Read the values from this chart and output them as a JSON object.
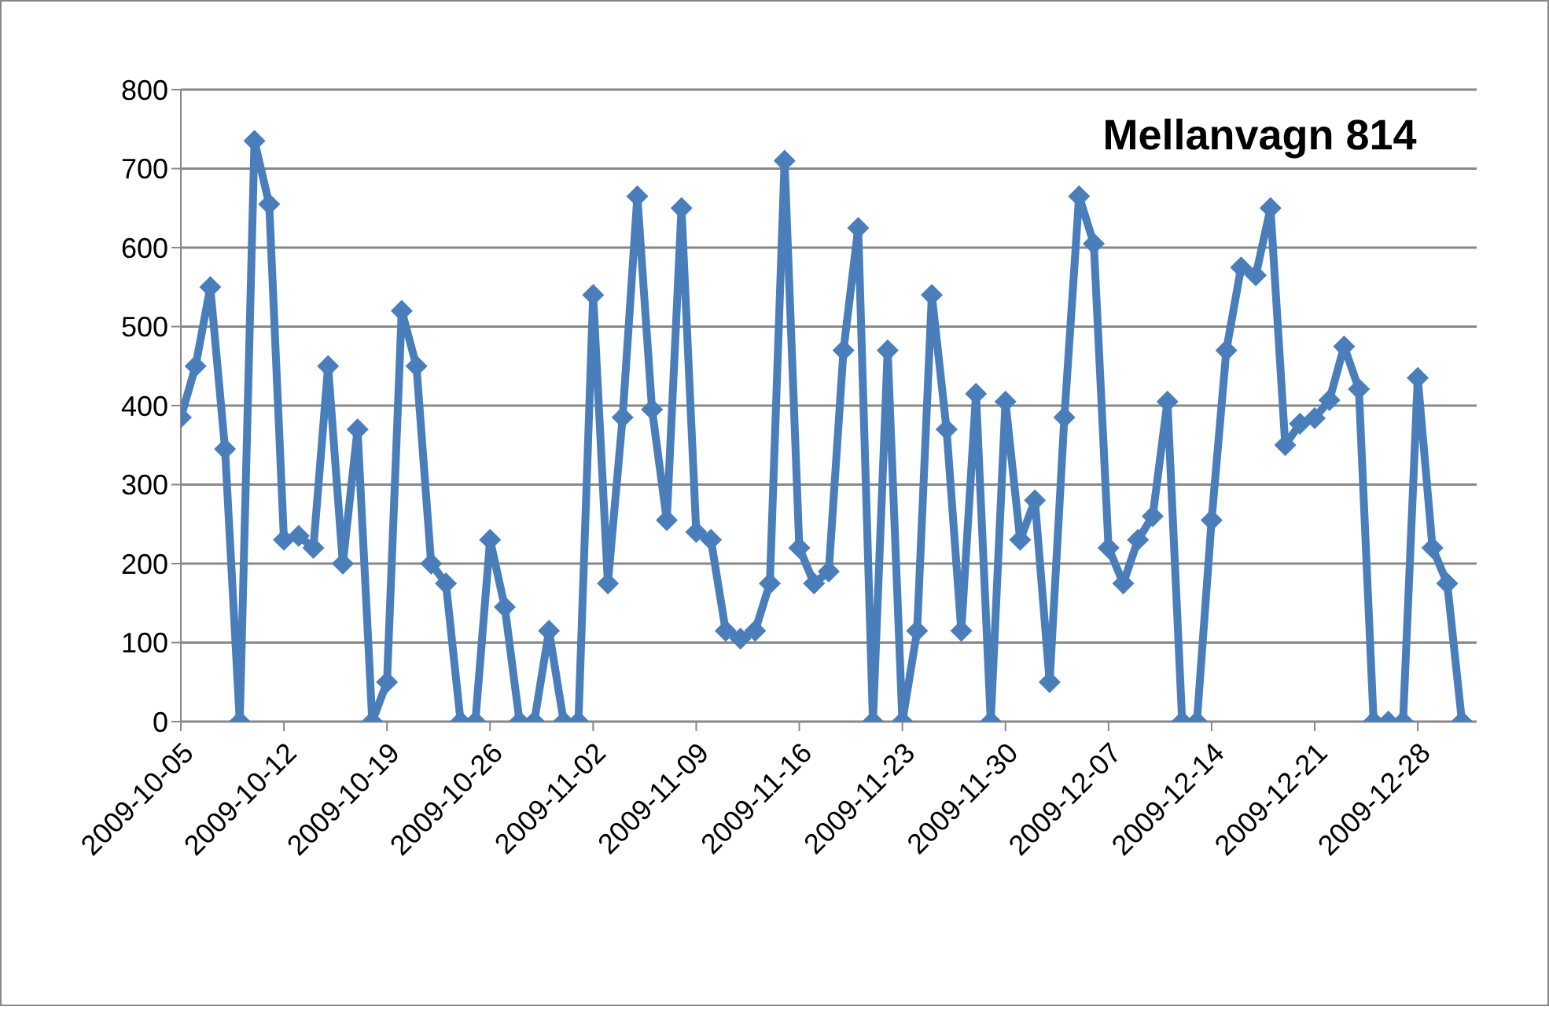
{
  "chart_data": {
    "type": "line",
    "title": "Mellanvagn 814",
    "x": [
      "2009-10-05",
      "2009-10-06",
      "2009-10-07",
      "2009-10-08",
      "2009-10-09",
      "2009-10-10",
      "2009-10-11",
      "2009-10-12",
      "2009-10-13",
      "2009-10-14",
      "2009-10-15",
      "2009-10-16",
      "2009-10-17",
      "2009-10-18",
      "2009-10-19",
      "2009-10-20",
      "2009-10-21",
      "2009-10-22",
      "2009-10-23",
      "2009-10-24",
      "2009-10-25",
      "2009-10-26",
      "2009-10-27",
      "2009-10-28",
      "2009-10-29",
      "2009-10-30",
      "2009-10-31",
      "2009-11-01",
      "2009-11-02",
      "2009-11-03",
      "2009-11-04",
      "2009-11-05",
      "2009-11-06",
      "2009-11-07",
      "2009-11-08",
      "2009-11-09",
      "2009-11-10",
      "2009-11-11",
      "2009-11-12",
      "2009-11-13",
      "2009-11-14",
      "2009-11-15",
      "2009-11-16",
      "2009-11-17",
      "2009-11-18",
      "2009-11-19",
      "2009-11-20",
      "2009-11-21",
      "2009-11-22",
      "2009-11-23",
      "2009-11-24",
      "2009-11-25",
      "2009-11-26",
      "2009-11-27",
      "2009-11-28",
      "2009-11-29",
      "2009-11-30",
      "2009-12-01",
      "2009-12-02",
      "2009-12-03",
      "2009-12-04",
      "2009-12-05",
      "2009-12-06",
      "2009-12-07",
      "2009-12-08",
      "2009-12-09",
      "2009-12-10",
      "2009-12-11",
      "2009-12-12",
      "2009-12-13",
      "2009-12-14",
      "2009-12-15",
      "2009-12-16",
      "2009-12-17",
      "2009-12-18",
      "2009-12-19",
      "2009-12-20",
      "2009-12-21",
      "2009-12-22",
      "2009-12-23",
      "2009-12-24",
      "2009-12-25",
      "2009-12-26",
      "2009-12-27",
      "2009-12-28",
      "2009-12-29",
      "2009-12-30",
      "2009-12-31"
    ],
    "series": [
      {
        "color": "#4a7ebb",
        "values": [
          385,
          450,
          550,
          345,
          0,
          735,
          655,
          230,
          235,
          220,
          450,
          200,
          370,
          0,
          50,
          520,
          450,
          200,
          175,
          0,
          0,
          230,
          145,
          0,
          0,
          115,
          0,
          0,
          540,
          175,
          385,
          665,
          395,
          255,
          650,
          240,
          230,
          115,
          105,
          115,
          175,
          710,
          220,
          175,
          190,
          470,
          625,
          0,
          470,
          0,
          115,
          540,
          370,
          115,
          415,
          0,
          405,
          230,
          280,
          50,
          385,
          665,
          605,
          220,
          175,
          230,
          260,
          405,
          0,
          0,
          255,
          470,
          575,
          565,
          650,
          350,
          377,
          384,
          407,
          475,
          421,
          0,
          0,
          0,
          435,
          220,
          175,
          0
        ]
      }
    ],
    "xlim": [
      "2009-10-05",
      "2010-01-01"
    ],
    "xticks": [
      "2009-10-05",
      "2009-10-12",
      "2009-10-19",
      "2009-10-26",
      "2009-11-02",
      "2009-11-09",
      "2009-11-16",
      "2009-11-23",
      "2009-11-30",
      "2009-12-07",
      "2009-12-14",
      "2009-12-21",
      "2009-12-28"
    ],
    "ylim": [
      0,
      800
    ],
    "yticks": [
      0,
      100,
      200,
      300,
      400,
      500,
      600,
      700,
      800
    ],
    "grid": "y",
    "marker": "diamond",
    "line_style": "solid"
  }
}
